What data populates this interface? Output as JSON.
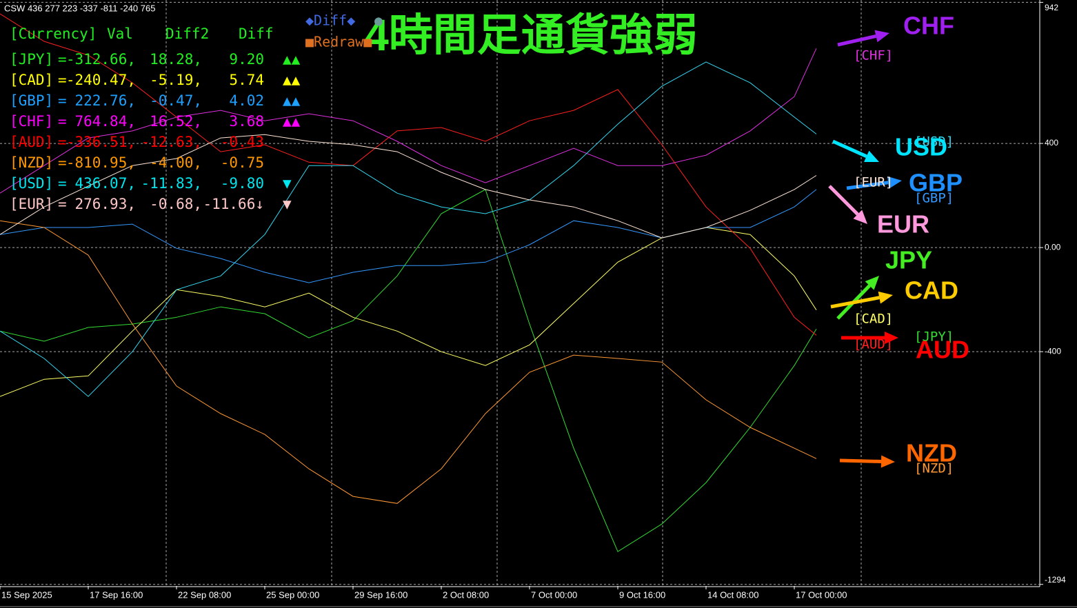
{
  "chart_data": {
    "type": "line",
    "title": "4時間足通貨強弱",
    "caption": "CSW 436 277 223 -337 -811 -240 765",
    "x": [
      0,
      8,
      16,
      24,
      32,
      40,
      48,
      56,
      64,
      72,
      80,
      88,
      96,
      104,
      112,
      120,
      128,
      136,
      144,
      148
    ],
    "xlim": [
      0,
      188.5
    ],
    "xticks": [
      {
        "value": 0,
        "label": "15 Sep 2025"
      },
      {
        "value": 16,
        "label": "17 Sep 16:00"
      },
      {
        "value": 32,
        "label": "22 Sep 08:00"
      },
      {
        "value": 48,
        "label": "25 Sep 00:00"
      },
      {
        "value": 64,
        "label": "29 Sep 16:00"
      },
      {
        "value": 80,
        "label": "2 Oct 08:00"
      },
      {
        "value": 96,
        "label": "7 Oct 00:00"
      },
      {
        "value": 112,
        "label": "9 Oct 16:00"
      },
      {
        "value": 128,
        "label": "14 Oct 08:00"
      },
      {
        "value": 144,
        "label": "17 Oct 00:00"
      }
    ],
    "ylim": [
      -1300,
      951
    ],
    "yticks": [
      942,
      400,
      {
        "value": 0,
        "label": "0.00"
      },
      -400,
      -1294
    ],
    "grid": true,
    "series": [
      {
        "name": "JPY",
        "tag": "[JPY]",
        "color": "#33dd33",
        "label_color": "#44ee22",
        "values": [
          -321,
          -360,
          -307,
          -294,
          -268,
          -228,
          -254,
          -347,
          -281,
          -109,
          130,
          223,
          -294,
          -771,
          -1168,
          -1062,
          -903,
          -691,
          -453,
          -313
        ]
      },
      {
        "name": "CAD",
        "tag": "[CAD]",
        "color": "#ffff66",
        "label_color": "#ffcc00",
        "values": [
          -572,
          -506,
          -493,
          -321,
          -162,
          -188,
          -228,
          -175,
          -268,
          -321,
          -400,
          -453,
          -374,
          -215,
          -56,
          37,
          77,
          50,
          -109,
          -240
        ]
      },
      {
        "name": "GBP",
        "tag": "[GBP]",
        "color": "#3399ff",
        "label_color": "#1e90ff",
        "values": [
          50,
          77,
          77,
          90,
          -3,
          -42,
          -95,
          -135,
          -95,
          -69,
          -69,
          -56,
          11,
          103,
          77,
          37,
          77,
          77,
          156,
          223
        ]
      },
      {
        "name": "CHF",
        "tag": "[CHF]",
        "color": "#e030e0",
        "label_color": "#a020f0",
        "values": [
          209,
          315,
          421,
          448,
          501,
          527,
          487,
          514,
          487,
          408,
          315,
          249,
          315,
          381,
          315,
          315,
          355,
          448,
          580,
          765
        ]
      },
      {
        "name": "AUD",
        "tag": "[AUD]",
        "color": "#ff2020",
        "label_color": "#ff0000",
        "values": [
          898,
          792,
          739,
          633,
          501,
          368,
          395,
          328,
          315,
          448,
          461,
          408,
          487,
          527,
          607,
          395,
          156,
          -3,
          -268,
          -337
        ]
      },
      {
        "name": "NZD",
        "tag": "[NZD]",
        "color": "#ff9933",
        "label_color": "#ff6600",
        "values": [
          103,
          77,
          -29,
          -294,
          -532,
          -638,
          -718,
          -850,
          -956,
          -983,
          -850,
          -638,
          -479,
          -413,
          -426,
          -440,
          -585,
          -691,
          -771,
          -811
        ]
      },
      {
        "name": "USD",
        "tag": "[USD]",
        "color": "#33d6f0",
        "label_color": "#00e5ff",
        "values": [
          -321,
          -426,
          -572,
          -400,
          -162,
          -109,
          50,
          315,
          315,
          209,
          156,
          130,
          183,
          315,
          474,
          620,
          713,
          633,
          501,
          436
        ]
      },
      {
        "name": "EUR",
        "tag": "[EUR]",
        "color": "#ffe6d6",
        "label_color": "#ff99dd",
        "values": [
          50,
          156,
          236,
          315,
          342,
          421,
          434,
          408,
          395,
          368,
          289,
          223,
          183,
          156,
          103,
          37,
          77,
          143,
          223,
          277
        ]
      }
    ]
  },
  "controls": [
    {
      "text": "◆Diff◆",
      "color": "#4169e1"
    },
    {
      "text": "●",
      "color": "#6a9a9a"
    },
    {
      "text": "■Redraw■",
      "color": "#e07020"
    }
  ],
  "panel": {
    "header": {
      "currency": "[Currency]",
      "val": "Val",
      "diff2": "Diff2",
      "diff": "Diff",
      "color": "#22ee22"
    },
    "rows": [
      {
        "name": "[JPY]",
        "sep": "=",
        "val": "-312.66,",
        "diff2": "18.28,",
        "diff": "9.20",
        "signal": "▲▲",
        "color": "#22ee22"
      },
      {
        "name": "[CAD]",
        "sep": "=",
        "val": "-240.47,",
        "diff2": "-5.19,",
        "diff": "5.74",
        "signal": "▲▲",
        "color": "#ffff00"
      },
      {
        "name": "[GBP]",
        "sep": "=",
        "val": "222.76,",
        "diff2": "-0.47,",
        "diff": "4.02",
        "signal": "▲▲",
        "color": "#1ea0ff"
      },
      {
        "name": "[CHF]",
        "sep": "=",
        "val": "764.84,",
        "diff2": "16.52,",
        "diff": "3.68",
        "signal": "▲▲",
        "color": "#ff00ff"
      },
      {
        "name": "[AUD]",
        "sep": "=",
        "val": "-336.51,",
        "diff2": "-12.63,",
        "diff": "-0.43",
        "color": "#ff0000"
      },
      {
        "name": "[NZD]",
        "sep": "=",
        "val": "-810.95,",
        "diff2": "-4.00,",
        "diff": "-0.75",
        "color": "#ff9900"
      },
      {
        "name": "[USD]",
        "sep": "=",
        "val": "436.07,",
        "diff2": "-11.83,",
        "diff": "-9.80",
        "signal": "▼",
        "color": "#00e5ee"
      },
      {
        "name": "[EUR]",
        "sep": "=",
        "val": "276.93,",
        "diff2": "-0.68,",
        "diff": "-11.66↓",
        "signal": "▼",
        "color": "#ffc8c8"
      }
    ]
  }
}
